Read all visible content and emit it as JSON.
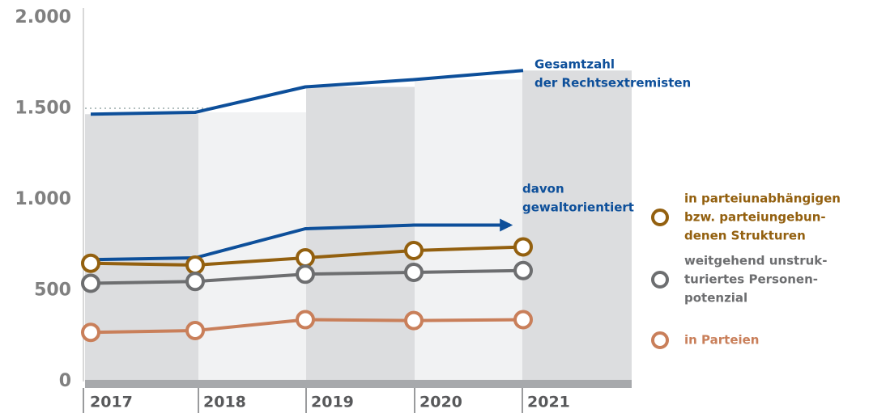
{
  "chart_data": {
    "type": "line",
    "categories": [
      "2017",
      "2018",
      "2019",
      "2020",
      "2021"
    ],
    "ylim": [
      0,
      2000
    ],
    "yticks": [
      0,
      500,
      {
        "value": 1000,
        "label": "1.000"
      },
      {
        "value": 1500,
        "label": "1.500"
      },
      {
        "value": 2000,
        "label": "2.000"
      }
    ],
    "series": [
      {
        "name": [
          "Gesamtzahl",
          "der Rechtsextremisten"
        ],
        "color": "#0d4f9a",
        "values": [
          1470,
          1480,
          1620,
          1660,
          1710
        ],
        "markers": false
      },
      {
        "name": [
          "davon",
          "gewaltorientiert"
        ],
        "color": "#0d4f9a",
        "values": [
          670,
          680,
          840,
          860,
          860
        ],
        "markers": false,
        "arrow": true
      },
      {
        "name": [
          "in parteiunabhängigen",
          "bzw. parteiungebun-",
          "denen Strukturen"
        ],
        "color": "#93600f",
        "values": [
          650,
          640,
          680,
          720,
          740
        ],
        "markers": true
      },
      {
        "name": [
          "weitgehend unstruk-",
          "turiertes Personen-",
          "potenzial"
        ],
        "color": "#6d6e70",
        "values": [
          540,
          550,
          590,
          600,
          610
        ],
        "markers": true
      },
      {
        "name": [
          "in Parteien"
        ],
        "color": "#c97f5a",
        "values": [
          270,
          280,
          340,
          335,
          340
        ],
        "markers": true
      }
    ]
  }
}
